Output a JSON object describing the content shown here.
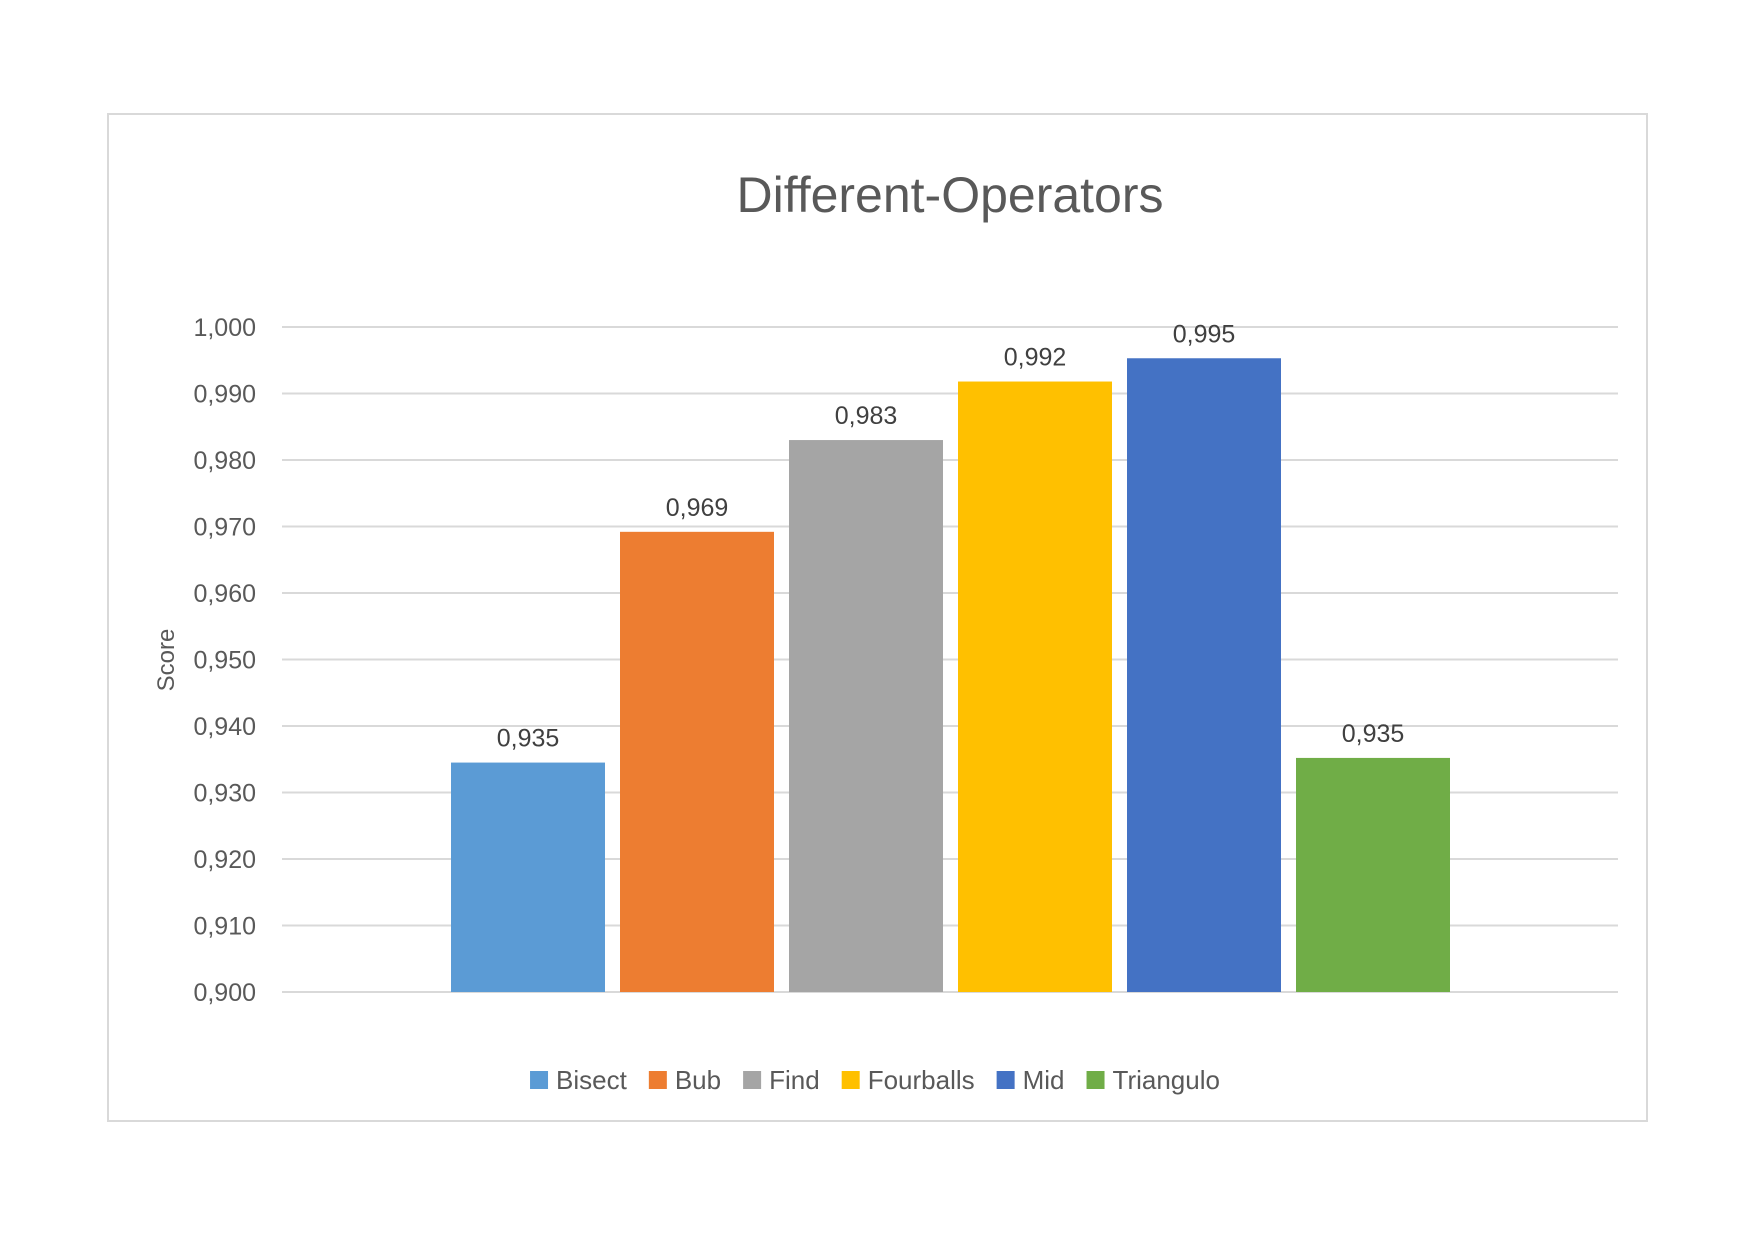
{
  "chart_data": {
    "type": "bar",
    "title": "Different-Operators",
    "xlabel": "",
    "ylabel": "Score",
    "ylim": [
      0.9,
      1.0
    ],
    "yticks": [
      "0,900",
      "0,910",
      "0,920",
      "0,930",
      "0,940",
      "0,950",
      "0,960",
      "0,970",
      "0,980",
      "0,990",
      "1,000"
    ],
    "grid": true,
    "legend_position": "bottom",
    "series": [
      {
        "name": "Bisect",
        "value": 0.9345,
        "label": "0,935",
        "color": "#5b9bd5"
      },
      {
        "name": "Bub",
        "value": 0.9692,
        "label": "0,969",
        "color": "#ed7d31"
      },
      {
        "name": "Find",
        "value": 0.983,
        "label": "0,983",
        "color": "#a5a5a5"
      },
      {
        "name": "Fourballs",
        "value": 0.9918,
        "label": "0,992",
        "color": "#ffc000"
      },
      {
        "name": "Mid",
        "value": 0.9953,
        "label": "0,995",
        "color": "#4472c4"
      },
      {
        "name": "Triangulo",
        "value": 0.9352,
        "label": "0,935",
        "color": "#70ad47"
      }
    ]
  }
}
